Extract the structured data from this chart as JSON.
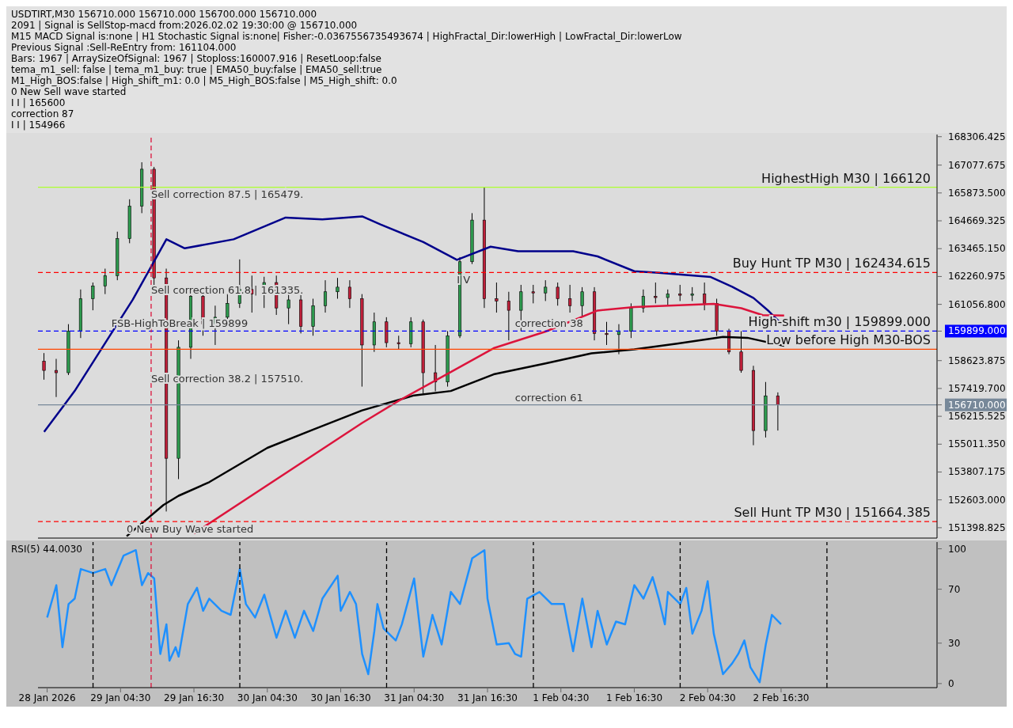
{
  "chart_data": [
    {
      "type": "candlestick",
      "title": "USDTIRT,M30  156710.000 156710.000 156700.000 156710.000",
      "x": [
        "2026-01-28T16:00",
        "2026-01-28T18:00",
        "2026-01-28T20:00",
        "2026-01-28T22:00",
        "2026-01-29T00:00",
        "2026-01-29T02:00",
        "2026-01-29T04:00",
        "2026-01-29T06:00",
        "2026-01-29T08:00",
        "2026-01-29T10:00",
        "2026-01-29T12:00",
        "2026-01-29T14:00",
        "2026-01-29T16:00",
        "2026-01-29T18:00",
        "2026-01-29T20:00",
        "2026-01-29T22:00",
        "2026-01-30T00:00",
        "2026-01-30T02:00",
        "2026-01-30T04:00",
        "2026-01-30T06:00",
        "2026-01-30T08:00",
        "2026-01-30T10:00",
        "2026-01-30T12:00",
        "2026-01-30T14:00",
        "2026-01-30T16:00",
        "2026-01-30T18:00",
        "2026-01-30T20:00",
        "2026-01-30T22:00",
        "2026-01-31T00:00",
        "2026-01-31T02:00",
        "2026-01-31T04:00",
        "2026-01-31T06:00",
        "2026-01-31T08:00",
        "2026-01-31T10:00",
        "2026-01-31T12:00",
        "2026-01-31T14:00",
        "2026-01-31T16:00",
        "2026-01-31T18:00",
        "2026-01-31T20:00",
        "2026-01-31T22:00",
        "2026-02-01T00:00",
        "2026-02-01T02:00",
        "2026-02-01T04:00",
        "2026-02-01T06:00",
        "2026-02-01T08:00",
        "2026-02-01T10:00",
        "2026-02-01T12:00",
        "2026-02-01T14:00",
        "2026-02-01T16:00",
        "2026-02-01T18:00",
        "2026-02-01T20:00",
        "2026-02-01T22:00",
        "2026-02-02T00:00",
        "2026-02-02T02:00",
        "2026-02-02T04:00",
        "2026-02-02T06:00",
        "2026-02-02T08:00",
        "2026-02-02T10:00",
        "2026-02-02T12:00",
        "2026-02-02T14:00",
        "2026-02-02T16:00"
      ],
      "ohlc": [
        [
          158600,
          158950,
          157800,
          158200
        ],
        [
          158200,
          158700,
          157050,
          158100
        ],
        [
          158100,
          160200,
          158000,
          159900
        ],
        [
          159900,
          161700,
          159600,
          161300
        ],
        [
          161300,
          162000,
          160800,
          161850
        ],
        [
          161850,
          162600,
          161500,
          162300
        ],
        [
          162300,
          164200,
          162100,
          163900
        ],
        [
          163900,
          165600,
          163700,
          165300
        ],
        [
          165300,
          167200,
          165000,
          166900
        ],
        [
          166900,
          167000,
          161700,
          162200
        ],
        [
          162200,
          162600,
          152100,
          154400
        ],
        [
          154400,
          159500,
          153500,
          159200
        ],
        [
          159200,
          161800,
          158700,
          161400
        ],
        [
          161400,
          161600,
          159700,
          160200
        ],
        [
          160200,
          161000,
          159300,
          160500
        ],
        [
          160500,
          161500,
          160100,
          161100
        ],
        [
          161100,
          163000,
          160900,
          161700
        ],
        [
          161700,
          162300,
          160700,
          161500
        ],
        [
          161500,
          162250,
          160900,
          162000
        ],
        [
          162000,
          162300,
          160600,
          160900
        ],
        [
          160900,
          161700,
          160200,
          161250
        ],
        [
          161250,
          161600,
          159800,
          160100
        ],
        [
          160100,
          161300,
          159700,
          161000
        ],
        [
          161000,
          162100,
          160700,
          161600
        ],
        [
          161600,
          162200,
          161300,
          161800
        ],
        [
          161800,
          162100,
          160900,
          161300
        ],
        [
          161300,
          161500,
          157500,
          159300
        ],
        [
          159300,
          160700,
          159000,
          160300
        ],
        [
          160300,
          160500,
          159200,
          159400
        ],
        [
          159400,
          159700,
          159100,
          159350
        ],
        [
          159350,
          160500,
          159200,
          160300
        ],
        [
          160300,
          160400,
          157200,
          158100
        ],
        [
          158100,
          159300,
          157300,
          157700
        ],
        [
          157700,
          159900,
          157500,
          159700
        ],
        [
          159700,
          163100,
          159600,
          162900
        ],
        [
          162900,
          165000,
          162800,
          164700
        ],
        [
          164700,
          166120,
          160900,
          161300
        ],
        [
          161300,
          162000,
          160700,
          161200
        ],
        [
          161200,
          161600,
          159500,
          160800
        ],
        [
          160800,
          161900,
          159900,
          161600
        ],
        [
          161600,
          161900,
          161100,
          161550
        ],
        [
          161550,
          162100,
          161200,
          161800
        ],
        [
          161800,
          162000,
          161000,
          161300
        ],
        [
          161300,
          161900,
          160700,
          161000
        ],
        [
          161000,
          161800,
          160500,
          161600
        ],
        [
          161600,
          161800,
          159500,
          159800
        ],
        [
          159800,
          160300,
          159300,
          159750
        ],
        [
          159750,
          160200,
          158900,
          159900
        ],
        [
          159900,
          161100,
          159600,
          160900
        ],
        [
          160900,
          161700,
          160700,
          161400
        ],
        [
          161400,
          162000,
          161100,
          161350
        ],
        [
          161350,
          161700,
          161000,
          161500
        ],
        [
          161500,
          161900,
          161200,
          161450
        ],
        [
          161450,
          161800,
          161200,
          161500
        ],
        [
          161500,
          162000,
          160800,
          161100
        ],
        [
          161100,
          161300,
          159700,
          159900
        ],
        [
          159900,
          160000,
          158900,
          159000
        ],
        [
          159000,
          159900,
          158100,
          158200
        ],
        [
          158200,
          158400,
          154966,
          155600
        ],
        [
          155600,
          157700,
          155300,
          157100
        ],
        [
          157100,
          157250,
          155600,
          156710
        ]
      ],
      "series": [
        {
          "type": "line",
          "color": "#00008b",
          "x": [
            "2026-01-28T16:00",
            "2026-01-28T21:00",
            "2026-01-29T06:30",
            "2026-01-29T12:00",
            "2026-01-29T15:00",
            "2026-01-29T23:00",
            "2026-01-30T07:30",
            "2026-01-30T13:30",
            "2026-01-30T20:00",
            "2026-01-30T23:00",
            "2026-01-31T06:00",
            "2026-01-31T11:30",
            "2026-01-31T17:00",
            "2026-01-31T21:30",
            "2026-02-01T06:30",
            "2026-02-01T10:30",
            "2026-02-01T16:30",
            "2026-02-01T20:30",
            "2026-02-02T05:00",
            "2026-02-02T08:30",
            "2026-02-02T12:00",
            "2026-02-02T14:30",
            "2026-02-02T17:00"
          ],
          "values": [
            155540,
            157310,
            161260,
            163870,
            163480,
            163870,
            164810,
            164730,
            164860,
            164510,
            163750,
            162980,
            163550,
            163350,
            163350,
            163130,
            162490,
            162420,
            162240,
            161820,
            161330,
            160760,
            160100
          ]
        },
        {
          "type": "line",
          "color": "#000000",
          "x": [
            "2026-01-29T05:30",
            "2026-01-29T11:30",
            "2026-01-29T14:00",
            "2026-01-29T19:00",
            "2026-01-30T04:30",
            "2026-01-30T12:00",
            "2026-01-30T20:00",
            "2026-01-31T04:30",
            "2026-01-31T10:30",
            "2026-01-31T17:30",
            "2026-02-01T02:00",
            "2026-02-01T09:30",
            "2026-02-01T16:30",
            "2026-02-01T23:30",
            "2026-02-02T07:00",
            "2026-02-02T11:00",
            "2026-02-02T17:00"
          ],
          "values": [
            151030,
            152380,
            152780,
            153370,
            154850,
            155640,
            156470,
            157120,
            157310,
            158030,
            158500,
            158940,
            159110,
            159360,
            159650,
            159610,
            159260
          ]
        },
        {
          "type": "line",
          "color": "#dc143c",
          "x": [
            "2026-01-29T16:30",
            "2026-01-30T20:00",
            "2026-01-31T02:00",
            "2026-01-31T10:30",
            "2026-01-31T17:30",
            "2026-02-01T02:00",
            "2026-02-01T10:30",
            "2026-02-01T16:30",
            "2026-02-02T05:30",
            "2026-02-02T10:00",
            "2026-02-02T13:30",
            "2026-02-02T17:00"
          ],
          "values": [
            151150,
            155930,
            156890,
            158130,
            159160,
            159880,
            160790,
            160940,
            161080,
            160890,
            160590,
            160570
          ]
        }
      ],
      "xlim": [
        "2026-01-28T15:00",
        "2026-02-03T18:00"
      ],
      "ylim": [
        150950,
        168400
      ],
      "yticks": [
        {
          "value": 151398.825,
          "label": "151398.825"
        },
        {
          "value": 152603,
          "label": "152603.000"
        },
        {
          "value": 153807.175,
          "label": "153807.175"
        },
        {
          "value": 155011.35,
          "label": "155011.350"
        },
        {
          "value": 156215.525,
          "label": "156215.525"
        },
        {
          "value": 157419.7,
          "label": "157419.700"
        },
        {
          "value": 158623.875,
          "label": "158623.875"
        },
        {
          "value": 156710,
          "label": "156710.000"
        },
        {
          "value": 159899,
          "label": "159899.000"
        },
        {
          "value": 161056.8,
          "label": "161056.800"
        },
        {
          "value": 162260.975,
          "label": "162260.975"
        },
        {
          "value": 163465.15,
          "label": "163465.150"
        },
        {
          "value": 164669.325,
          "label": "164669.325"
        },
        {
          "value": 165873.5,
          "label": "165873.500"
        },
        {
          "value": 167077.675,
          "label": "167077.675"
        },
        {
          "value": 168306.425,
          "label": "168306.425"
        }
      ],
      "tick_labels": "y",
      "ref_lines": [
        {
          "axis": "y",
          "value": 166120,
          "label": "HighestHigh    M30 | 166120",
          "color": "#adff2f",
          "line_style": "solid"
        },
        {
          "axis": "y",
          "value": 162434.615,
          "label": "Buy Hunt TP M30 | 162434.615",
          "color": "#ff0000",
          "line_style": "dashed"
        },
        {
          "axis": "y",
          "value": 159899,
          "label": "High-shift m30 | 159899.000",
          "color": "#0000ff",
          "line_style": "dashed"
        },
        {
          "axis": "y",
          "value": 159112,
          "label": "Low before High    M30-BOS",
          "color": "#ff4500",
          "line_style": "solid"
        },
        {
          "axis": "y",
          "value": 156710,
          "color": "#778899",
          "line_style": "solid"
        },
        {
          "axis": "y",
          "value": 151664.385,
          "label": "Sell Hunt TP M30 | 151664.385",
          "color": "#ff0000",
          "line_style": "dashed"
        },
        {
          "axis": "x",
          "value": "2026-01-29T09:30",
          "color": "#dc143c",
          "line_style": "dashed"
        }
      ],
      "annotations": [
        "2091 | Signal is SellStop-macd from:2026.02.02 19:30:00 @ 156710.000",
        "M15 MACD Signal is:none | H1 Stochastic Signal is:none| Fisher:-0.0367556735493674 | HighFractal_Dir:lowerHigh | LowFractal_Dir:lowerLow",
        "Previous Signal :Sell-ReEntry from: 161104.000",
        "Bars: 1967 | ArraySizeOfSignal: 1967 | Stoploss:160007.916 | ResetLoop:false",
        "tema_m1_sell: false | tema_m1_buy: true | EMA50_buy:false | EMA50_sell:true",
        "M1_High_BOS:false | High_shift_m1: 0.0 | M5_High_BOS:false | M5_High_shift: 0.0",
        "0 New Sell wave started",
        "I I | 165600",
        "correction 87",
        "I I | 154966",
        {
          "text": "Sell correction 87.5 | 165479.",
          "x": "2026-01-29T09:30",
          "y": 165479
        },
        {
          "text": "Sell correction 61.8 | 161335.",
          "x": "2026-01-29T09:30",
          "y": 161335
        },
        {
          "text": "Sell correction 38.2 | 157510.",
          "x": "2026-01-29T09:30",
          "y": 157510
        },
        {
          "text": "FSB-HighToBreak | 159899",
          "x": "2026-01-29T03:00",
          "y": 159899
        },
        {
          "text": "I V",
          "x": "2026-01-31T11:30",
          "y": 161800
        },
        {
          "text": "correction 38",
          "x": "2026-01-31T21:00",
          "y": 159899
        },
        {
          "text": "correction 61",
          "x": "2026-01-31T21:00",
          "y": 156710
        },
        {
          "text": "0 New Buy Wave started",
          "x": "2026-01-29T05:30",
          "y": 151030
        }
      ]
    },
    {
      "type": "line",
      "title": "RSI(5) 44.0030",
      "color": "#1e90ff",
      "x": [
        "2026-01-28T16:30",
        "2026-01-28T18:00",
        "2026-01-28T19:00",
        "2026-01-28T20:00",
        "2026-01-28T21:00",
        "2026-01-28T22:00",
        "2026-01-29T00:00",
        "2026-01-29T02:00",
        "2026-01-29T03:00",
        "2026-01-29T05:00",
        "2026-01-29T07:00",
        "2026-01-29T08:00",
        "2026-01-29T09:00",
        "2026-01-29T10:00",
        "2026-01-29T11:00",
        "2026-01-29T12:00",
        "2026-01-29T12:30",
        "2026-01-29T13:30",
        "2026-01-29T14:00",
        "2026-01-29T15:30",
        "2026-01-29T17:00",
        "2026-01-29T18:00",
        "2026-01-29T19:00",
        "2026-01-29T21:00",
        "2026-01-29T22:30",
        "2026-01-30T00:00",
        "2026-01-30T01:00",
        "2026-01-30T02:30",
        "2026-01-30T04:00",
        "2026-01-30T06:00",
        "2026-01-30T07:30",
        "2026-01-30T09:00",
        "2026-01-30T10:30",
        "2026-01-30T12:00",
        "2026-01-30T13:30",
        "2026-01-30T16:00",
        "2026-01-30T16:30",
        "2026-01-30T18:00",
        "2026-01-30T19:00",
        "2026-01-30T20:00",
        "2026-01-30T21:00",
        "2026-01-30T22:00",
        "2026-01-30T22:30",
        "2026-01-30T23:30",
        "2026-01-31T01:30",
        "2026-01-31T02:30",
        "2026-01-31T04:30",
        "2026-01-31T06:00",
        "2026-01-31T07:30",
        "2026-01-31T09:00",
        "2026-01-31T10:30",
        "2026-01-31T12:00",
        "2026-01-31T14:00",
        "2026-01-31T16:00",
        "2026-01-31T16:30",
        "2026-01-31T18:00",
        "2026-01-31T20:00",
        "2026-01-31T21:00",
        "2026-01-31T22:00",
        "2026-01-31T23:00",
        "2026-02-01T01:00",
        "2026-02-01T03:00",
        "2026-02-01T05:00",
        "2026-02-01T06:30",
        "2026-02-01T08:00",
        "2026-02-01T09:30",
        "2026-02-01T10:30",
        "2026-02-01T12:00",
        "2026-02-01T13:30",
        "2026-02-01T15:00",
        "2026-02-01T16:30",
        "2026-02-01T18:00",
        "2026-02-01T19:30",
        "2026-02-01T20:30",
        "2026-02-01T21:30",
        "2026-02-01T22:00",
        "2026-02-02T00:00",
        "2026-02-02T01:00",
        "2026-02-02T02:00",
        "2026-02-02T03:30",
        "2026-02-02T04:30",
        "2026-02-02T05:30",
        "2026-02-02T07:00",
        "2026-02-02T08:30",
        "2026-02-02T09:30",
        "2026-02-02T10:30",
        "2026-02-02T11:30",
        "2026-02-02T13:00",
        "2026-02-02T14:00",
        "2026-02-02T15:00",
        "2026-02-02T16:30"
      ],
      "values": [
        49,
        73,
        27,
        59,
        63,
        85,
        82,
        85,
        73,
        95,
        99,
        73,
        82,
        78,
        22,
        44,
        17,
        27,
        20,
        59,
        71,
        54,
        63,
        54,
        51,
        85,
        59,
        49,
        66,
        34,
        54,
        34,
        54,
        39,
        63,
        80,
        54,
        68,
        59,
        22,
        7,
        39,
        59,
        41,
        32,
        44,
        78,
        20,
        51,
        29,
        68,
        59,
        93,
        99,
        63,
        29,
        30,
        22,
        20,
        63,
        68,
        59,
        59,
        24,
        63,
        27,
        54,
        29,
        46,
        44,
        73,
        63,
        79,
        63,
        44,
        68,
        59,
        71,
        37,
        54,
        76,
        37,
        7,
        15,
        22,
        32,
        12,
        1,
        29,
        51,
        44
      ],
      "xlim": [
        "2026-01-28T15:00",
        "2026-02-03T18:00"
      ],
      "xticks": [
        {
          "value": "2026-01-28T16:30",
          "label": "28 Jan 2026"
        },
        {
          "value": "2026-01-29T04:30",
          "label": "29 Jan 04:30"
        },
        {
          "value": "2026-01-29T16:30",
          "label": "29 Jan 16:30"
        },
        {
          "value": "2026-01-30T04:30",
          "label": "30 Jan 04:30"
        },
        {
          "value": "2026-01-30T16:30",
          "label": "30 Jan 16:30"
        },
        {
          "value": "2026-01-31T04:30",
          "label": "31 Jan 04:30"
        },
        {
          "value": "2026-01-31T16:30",
          "label": "31 Jan 16:30"
        },
        {
          "value": "2026-02-01T04:30",
          "label": "1 Feb 04:30"
        },
        {
          "value": "2026-02-01T16:30",
          "label": "1 Feb 16:30"
        },
        {
          "value": "2026-02-02T04:30",
          "label": "2 Feb 04:30"
        },
        {
          "value": "2026-02-02T16:30",
          "label": "2 Feb 16:30"
        }
      ],
      "ylim": [
        -3,
        105
      ],
      "yticks": [
        0,
        30,
        70,
        100
      ],
      "ref_lines": [
        {
          "axis": "x",
          "value": "2026-01-29T00:00",
          "color": "#000000",
          "line_style": "dashed"
        },
        {
          "axis": "x",
          "value": "2026-01-29T09:30",
          "color": "#dc143c",
          "line_style": "dashed"
        },
        {
          "axis": "x",
          "value": "2026-01-30T00:00",
          "color": "#000000",
          "line_style": "dashed"
        },
        {
          "axis": "x",
          "value": "2026-01-31T00:00",
          "color": "#000000",
          "line_style": "dashed"
        },
        {
          "axis": "x",
          "value": "2026-02-01T00:00",
          "color": "#000000",
          "line_style": "dashed"
        },
        {
          "axis": "x",
          "value": "2026-02-02T00:00",
          "color": "#000000",
          "line_style": "dashed"
        },
        {
          "axis": "x",
          "value": "2026-02-03T00:00",
          "color": "#000000",
          "line_style": "dashed"
        }
      ]
    }
  ]
}
